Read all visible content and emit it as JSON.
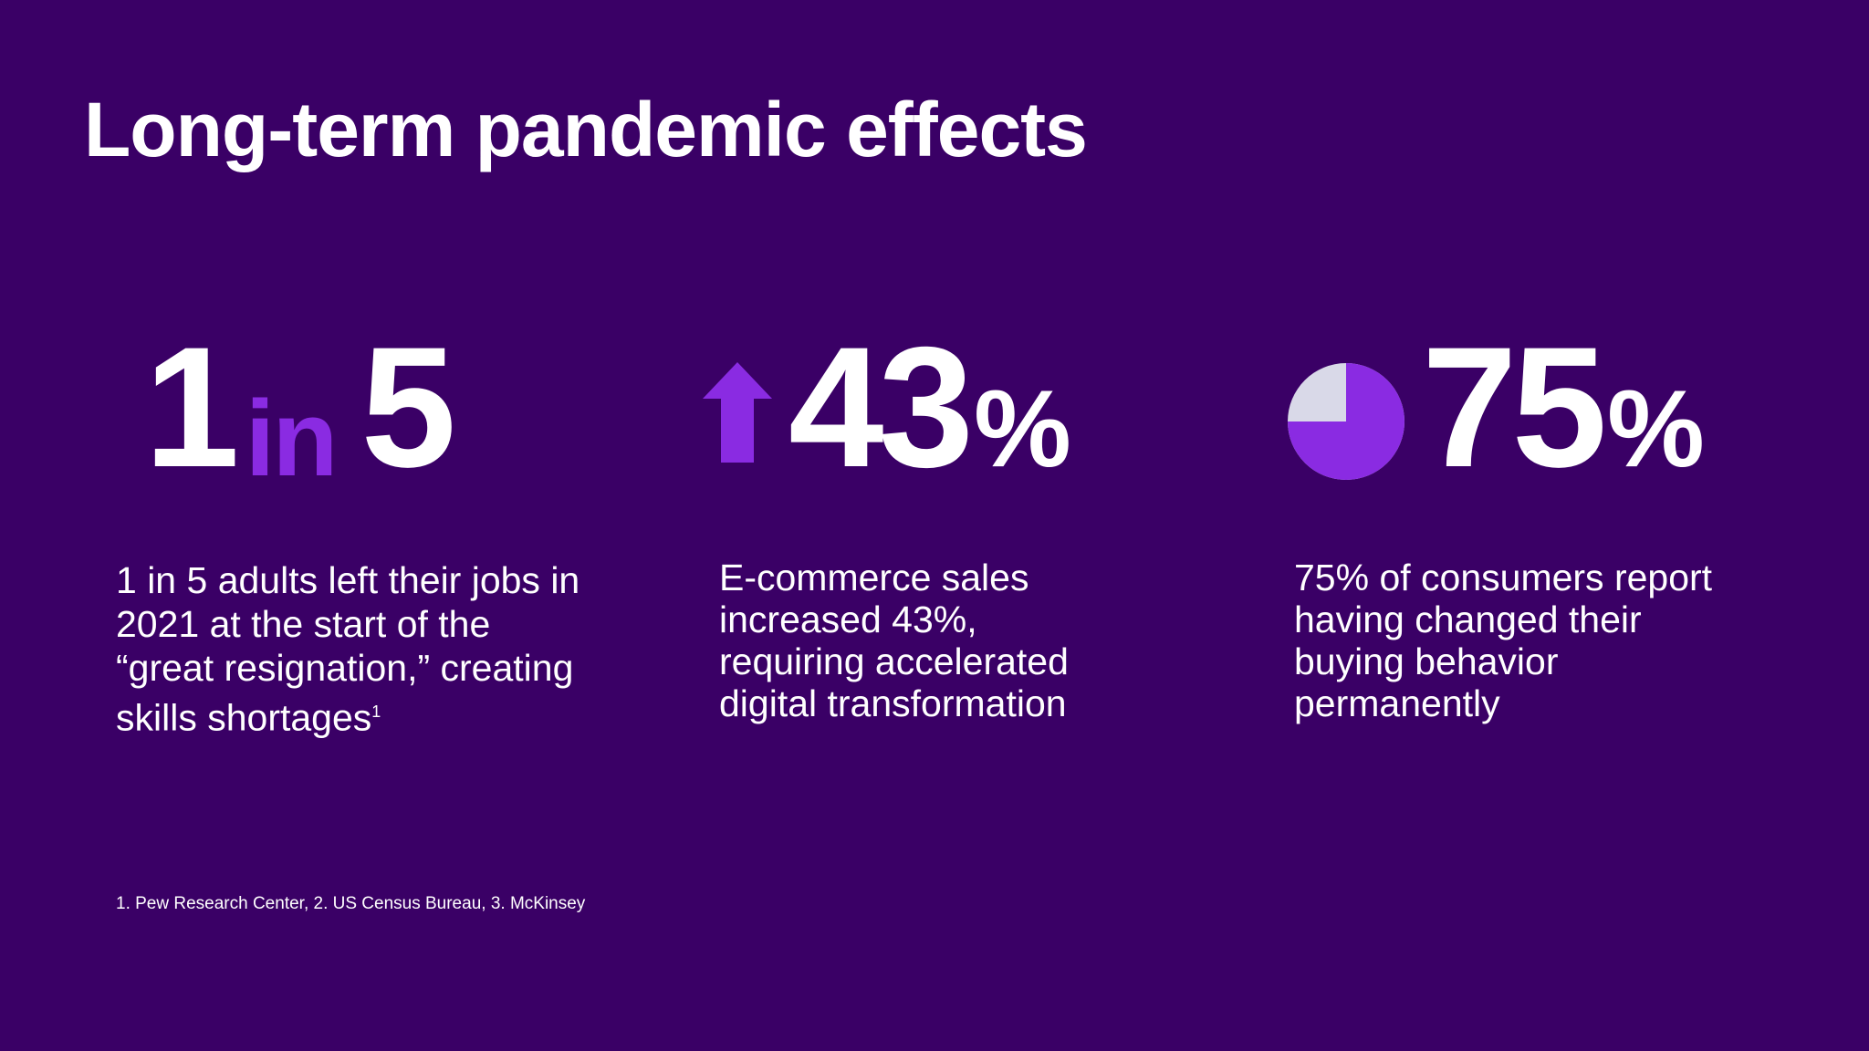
{
  "title": "Long-term pandemic effects",
  "stats": [
    {
      "number_left": "1",
      "connector": "in",
      "number_right": "5",
      "description": "1 in 5 adults left their jobs in 2021 at the start of the “great resignation,” creating skills shortages",
      "footnote_ref": "1"
    },
    {
      "icon": "arrow-up-icon",
      "number": "43",
      "unit": "%",
      "description": "E-commerce sales increased 43%, requiring accelerated digital transformation"
    },
    {
      "icon": "pie-chart-icon",
      "number": "75",
      "unit": "%",
      "description": "75% of consumers report having changed their buying behavior permanently",
      "pie_filled_fraction": 0.75
    }
  ],
  "footnote": "1. Pew Research Center, 2.  US Census Bureau, 3. McKinsey",
  "colors": {
    "background": "#3a0066",
    "accent": "#8a2be2",
    "pie_remainder": "#d9d9e8",
    "text": "#ffffff"
  }
}
